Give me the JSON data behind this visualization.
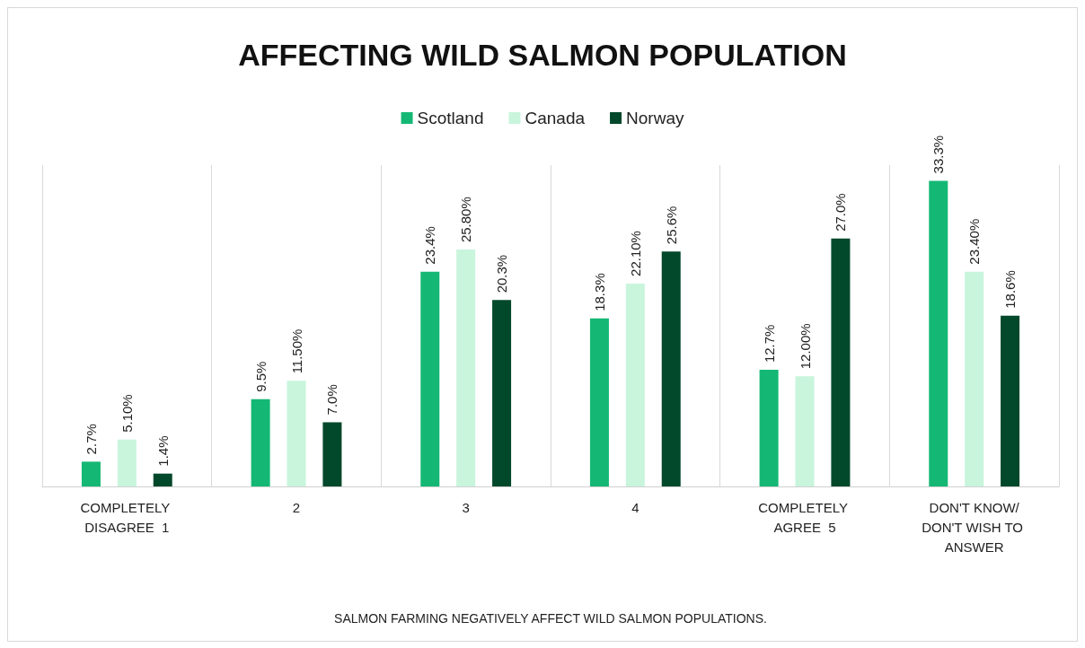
{
  "chart_data": {
    "type": "bar",
    "title": "AFFECTING WILD SALMON POPULATION",
    "xlabel": "SALMON FARMING NEGATIVELY AFFECT WILD SALMON POPULATIONS.",
    "categories": [
      "COMPLETELY DISAGREE  1",
      "2",
      "3",
      "4",
      "COMPLETELY AGREE  5",
      "DON'T KNOW/DON'T WISH TO ANSWER"
    ],
    "series": [
      {
        "name": "Scotland",
        "color": "#14b874",
        "values": [
          2.7,
          9.5,
          23.4,
          18.3,
          12.7,
          33.3
        ],
        "value_labels": [
          "2.7%",
          "9.5%",
          "23.4%",
          "18.3%",
          "12.7%",
          "33.3%"
        ]
      },
      {
        "name": "Canada",
        "color": "#c8f5dc",
        "values": [
          5.1,
          11.5,
          25.8,
          22.1,
          12.0,
          23.4
        ],
        "value_labels": [
          "5.10%",
          "11.50%",
          "25.80%",
          "22.10%",
          "12.00%",
          "23.40%"
        ]
      },
      {
        "name": "Norway",
        "color": "#02482b",
        "values": [
          1.4,
          7.0,
          20.3,
          25.6,
          27.0,
          18.6
        ],
        "value_labels": [
          "1.4%",
          "7.0%",
          "20.3%",
          "25.6%",
          "27.0%",
          "18.6%"
        ]
      }
    ],
    "legend": "top",
    "grid": "x"
  }
}
